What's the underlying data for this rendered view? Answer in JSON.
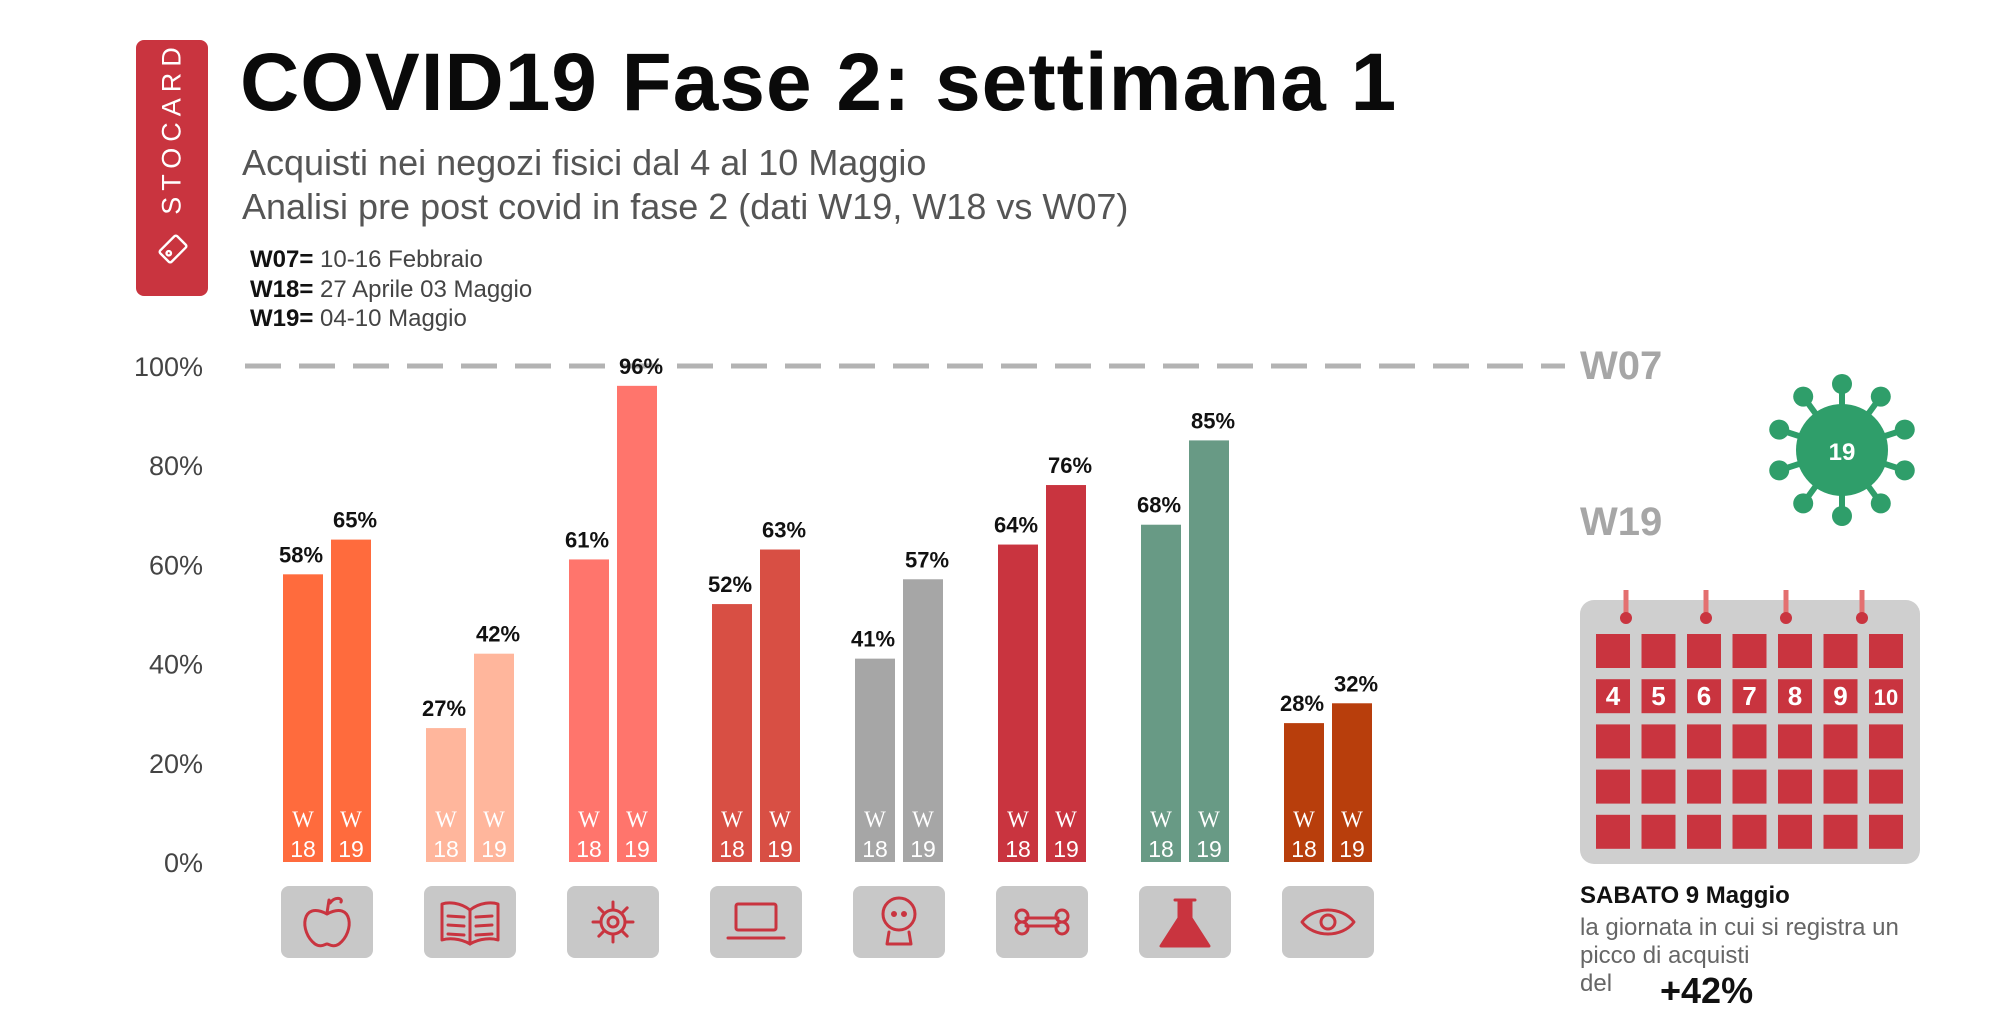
{
  "brand": {
    "name": "STOCARD"
  },
  "header": {
    "title": "COVID19 Fase 2: settimana 1",
    "subtitle_1": "Acquisti nei negozi fisici dal 4 al 10 Maggio",
    "subtitle_2": "Analisi pre post covid in fase 2 (dati W19, W18 vs W07)"
  },
  "legend": [
    {
      "key": "W07=",
      "value": "10-16 Febbraio"
    },
    {
      "key": "W18=",
      "value": "27 Aprile 03 Maggio"
    },
    {
      "key": "W19=",
      "value": "04-10 Maggio"
    }
  ],
  "reference_labels": {
    "w07": "W07",
    "w19": "W19"
  },
  "colors": {
    "brand": "#c9343f",
    "grid_dash": "#b3b3b3",
    "icon_tile": "#c8c8c8",
    "icon_stroke": "#c9343f",
    "virus": "#2f9e6a",
    "calendar_frame": "#cfcfcf",
    "calendar_cell": "#c9343f"
  },
  "chart_data": {
    "type": "bar",
    "title": "COVID19 Fase 2: settimana 1",
    "ylabel": "",
    "xlabel": "",
    "ylim": [
      0,
      100
    ],
    "yticks": [
      "0%",
      "20%",
      "40%",
      "60%",
      "80%",
      "100%"
    ],
    "reference_line": {
      "value": 100,
      "label": "W07"
    },
    "series_names": [
      "W18",
      "W19"
    ],
    "bar_tag_top": "W",
    "bar_tag_bottom": [
      "18",
      "19"
    ],
    "categories": [
      {
        "icon": "apple-icon",
        "color": "#ff6b3d",
        "values": [
          58,
          65
        ],
        "labels": [
          "58%",
          "65%"
        ]
      },
      {
        "icon": "book-icon",
        "color": "#ffb69c",
        "values": [
          27,
          42
        ],
        "labels": [
          "27%",
          "42%"
        ]
      },
      {
        "icon": "gear-icon",
        "color": "#ff756c",
        "values": [
          61,
          96
        ],
        "labels": [
          "61%",
          "96%"
        ]
      },
      {
        "icon": "laptop-icon",
        "color": "#d84f44",
        "values": [
          52,
          63
        ],
        "labels": [
          "52%",
          "63%"
        ]
      },
      {
        "icon": "baby-icon",
        "color": "#a6a6a6",
        "values": [
          41,
          57
        ],
        "labels": [
          "41%",
          "57%"
        ]
      },
      {
        "icon": "bone-icon",
        "color": "#c9343f",
        "values": [
          64,
          76
        ],
        "labels": [
          "64%",
          "76%"
        ]
      },
      {
        "icon": "flask-icon",
        "color": "#689a85",
        "values": [
          68,
          85
        ],
        "labels": [
          "68%",
          "85%"
        ]
      },
      {
        "icon": "eye-icon",
        "color": "#b83e0c",
        "values": [
          28,
          32
        ],
        "labels": [
          "28%",
          "32%"
        ]
      }
    ]
  },
  "calendar": {
    "numbers": [
      "4",
      "5",
      "6",
      "7",
      "8",
      "9",
      "10"
    ],
    "virus_label": "19"
  },
  "callout": {
    "title": "SABATO 9 Maggio",
    "line_1": "la giornata in cui si registra un",
    "line_2": "picco di acquisti",
    "line_3": "del",
    "value": "+42%"
  }
}
